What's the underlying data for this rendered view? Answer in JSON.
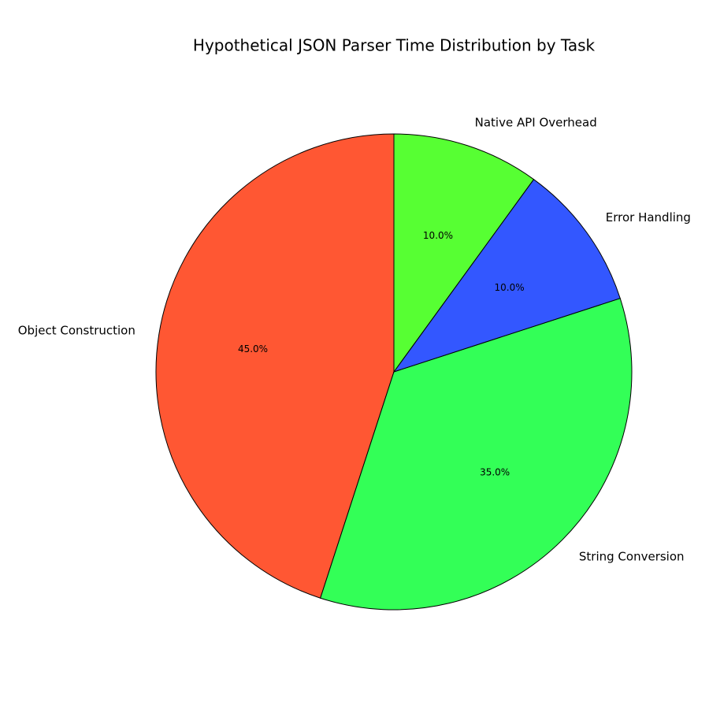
{
  "chart_data": {
    "type": "pie",
    "title": "Hypothetical JSON Parser Time Distribution by Task",
    "categories": [
      "Object Construction",
      "String Conversion",
      "Error Handling",
      "Native API Overhead"
    ],
    "values": [
      45,
      35,
      10,
      10
    ],
    "value_labels": [
      "45.0%",
      "35.0%",
      "10.0%",
      "10.0%"
    ],
    "colors": [
      "#FF5733",
      "#33FF57",
      "#3357FF",
      "#57FF33"
    ],
    "start_angle": 90,
    "direction": "counterclockwise"
  }
}
